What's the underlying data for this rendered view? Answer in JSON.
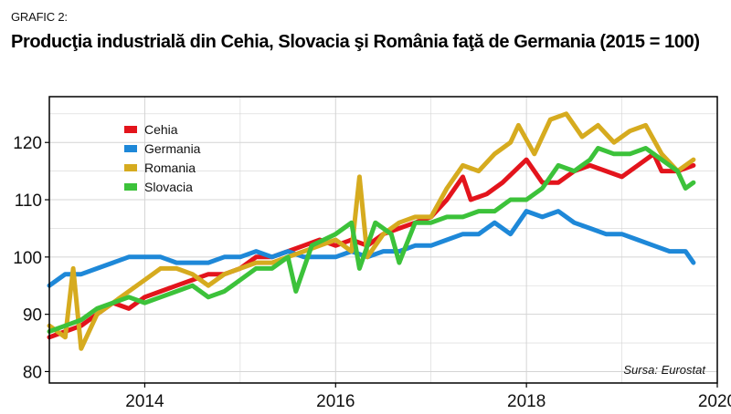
{
  "header": {
    "label": "GRAFIC 2:",
    "title": "Producţia industrială din Cehia, Slovacia şi România faţă de Germania (2015 = 100)"
  },
  "source": "Sursa: Eurostat",
  "colors": {
    "Cehia": "#e3141c",
    "Germania": "#1e88d8",
    "Romania": "#d6ab1f",
    "Slovacia": "#3cc23a",
    "grid": "#d4d4d4",
    "frame": "#000000"
  },
  "chart_data": {
    "type": "line",
    "grid": true,
    "legend_position": "top-left",
    "xlim": [
      "2013-01",
      "2020-01"
    ],
    "ylim": [
      78,
      128
    ],
    "xticks": [
      "2014",
      "2016",
      "2018",
      "2020"
    ],
    "yticks": [
      80,
      90,
      100,
      110,
      120
    ],
    "series": [
      {
        "name": "Cehia",
        "points": [
          [
            "2013-01",
            86
          ],
          [
            "2013-03",
            87
          ],
          [
            "2013-05",
            88
          ],
          [
            "2013-07",
            90
          ],
          [
            "2013-09",
            92
          ],
          [
            "2013-11",
            91
          ],
          [
            "2014-01",
            93
          ],
          [
            "2014-03",
            94
          ],
          [
            "2014-05",
            95
          ],
          [
            "2014-07",
            96
          ],
          [
            "2014-09",
            97
          ],
          [
            "2014-11",
            97
          ],
          [
            "2015-01",
            98
          ],
          [
            "2015-03",
            100
          ],
          [
            "2015-05",
            100
          ],
          [
            "2015-07",
            101
          ],
          [
            "2015-09",
            102
          ],
          [
            "2015-11",
            103
          ],
          [
            "2016-01",
            102
          ],
          [
            "2016-03",
            103
          ],
          [
            "2016-05",
            102
          ],
          [
            "2016-07",
            104
          ],
          [
            "2016-09",
            105
          ],
          [
            "2016-11",
            106
          ],
          [
            "2017-01",
            107
          ],
          [
            "2017-03",
            110
          ],
          [
            "2017-05",
            114
          ],
          [
            "2017-06",
            110
          ],
          [
            "2017-08",
            111
          ],
          [
            "2017-10",
            113
          ],
          [
            "2018-01",
            117
          ],
          [
            "2018-03",
            113
          ],
          [
            "2018-05",
            113
          ],
          [
            "2018-07",
            115
          ],
          [
            "2018-09",
            116
          ],
          [
            "2018-11",
            115
          ],
          [
            "2019-01",
            114
          ],
          [
            "2019-03",
            116
          ],
          [
            "2019-05",
            118
          ],
          [
            "2019-06",
            115
          ],
          [
            "2019-08",
            115
          ],
          [
            "2019-10",
            116
          ]
        ]
      },
      {
        "name": "Germania",
        "points": [
          [
            "2013-01",
            95
          ],
          [
            "2013-03",
            97
          ],
          [
            "2013-05",
            97
          ],
          [
            "2013-07",
            98
          ],
          [
            "2013-09",
            99
          ],
          [
            "2013-11",
            100
          ],
          [
            "2014-01",
            100
          ],
          [
            "2014-03",
            100
          ],
          [
            "2014-05",
            99
          ],
          [
            "2014-07",
            99
          ],
          [
            "2014-09",
            99
          ],
          [
            "2014-11",
            100
          ],
          [
            "2015-01",
            100
          ],
          [
            "2015-03",
            101
          ],
          [
            "2015-05",
            100
          ],
          [
            "2015-07",
            101
          ],
          [
            "2015-09",
            100
          ],
          [
            "2015-11",
            100
          ],
          [
            "2016-01",
            100
          ],
          [
            "2016-03",
            101
          ],
          [
            "2016-05",
            100
          ],
          [
            "2016-07",
            101
          ],
          [
            "2016-09",
            101
          ],
          [
            "2016-11",
            102
          ],
          [
            "2017-01",
            102
          ],
          [
            "2017-03",
            103
          ],
          [
            "2017-05",
            104
          ],
          [
            "2017-07",
            104
          ],
          [
            "2017-09",
            106
          ],
          [
            "2017-11",
            104
          ],
          [
            "2018-01",
            108
          ],
          [
            "2018-03",
            107
          ],
          [
            "2018-05",
            108
          ],
          [
            "2018-07",
            106
          ],
          [
            "2018-09",
            105
          ],
          [
            "2018-11",
            104
          ],
          [
            "2019-01",
            104
          ],
          [
            "2019-03",
            103
          ],
          [
            "2019-05",
            102
          ],
          [
            "2019-07",
            101
          ],
          [
            "2019-09",
            101
          ],
          [
            "2019-10",
            99
          ]
        ]
      },
      {
        "name": "Romania",
        "points": [
          [
            "2013-01",
            88
          ],
          [
            "2013-03",
            86
          ],
          [
            "2013-04",
            98
          ],
          [
            "2013-05",
            84
          ],
          [
            "2013-07",
            90
          ],
          [
            "2013-09",
            92
          ],
          [
            "2013-11",
            94
          ],
          [
            "2014-01",
            96
          ],
          [
            "2014-03",
            98
          ],
          [
            "2014-05",
            98
          ],
          [
            "2014-07",
            97
          ],
          [
            "2014-09",
            95
          ],
          [
            "2014-11",
            97
          ],
          [
            "2015-01",
            98
          ],
          [
            "2015-03",
            99
          ],
          [
            "2015-05",
            99
          ],
          [
            "2015-07",
            100
          ],
          [
            "2015-09",
            101
          ],
          [
            "2015-11",
            102
          ],
          [
            "2016-01",
            103
          ],
          [
            "2016-03",
            101
          ],
          [
            "2016-04",
            114
          ],
          [
            "2016-05",
            100
          ],
          [
            "2016-07",
            104
          ],
          [
            "2016-09",
            106
          ],
          [
            "2016-11",
            107
          ],
          [
            "2017-01",
            107
          ],
          [
            "2017-03",
            112
          ],
          [
            "2017-05",
            116
          ],
          [
            "2017-07",
            115
          ],
          [
            "2017-09",
            118
          ],
          [
            "2017-11",
            120
          ],
          [
            "2017-12",
            123
          ],
          [
            "2018-02",
            118
          ],
          [
            "2018-04",
            124
          ],
          [
            "2018-06",
            125
          ],
          [
            "2018-08",
            121
          ],
          [
            "2018-10",
            123
          ],
          [
            "2018-12",
            120
          ],
          [
            "2019-02",
            122
          ],
          [
            "2019-04",
            123
          ],
          [
            "2019-06",
            118
          ],
          [
            "2019-08",
            115
          ],
          [
            "2019-10",
            117
          ]
        ]
      },
      {
        "name": "Slovacia",
        "points": [
          [
            "2013-01",
            87
          ],
          [
            "2013-03",
            88
          ],
          [
            "2013-05",
            89
          ],
          [
            "2013-07",
            91
          ],
          [
            "2013-09",
            92
          ],
          [
            "2013-11",
            93
          ],
          [
            "2014-01",
            92
          ],
          [
            "2014-03",
            93
          ],
          [
            "2014-05",
            94
          ],
          [
            "2014-07",
            95
          ],
          [
            "2014-09",
            93
          ],
          [
            "2014-11",
            94
          ],
          [
            "2015-01",
            96
          ],
          [
            "2015-03",
            98
          ],
          [
            "2015-05",
            98
          ],
          [
            "2015-07",
            100
          ],
          [
            "2015-08",
            94
          ],
          [
            "2015-10",
            102
          ],
          [
            "2016-01",
            104
          ],
          [
            "2016-03",
            106
          ],
          [
            "2016-04",
            98
          ],
          [
            "2016-06",
            106
          ],
          [
            "2016-08",
            104
          ],
          [
            "2016-09",
            99
          ],
          [
            "2016-11",
            106
          ],
          [
            "2017-01",
            106
          ],
          [
            "2017-03",
            107
          ],
          [
            "2017-05",
            107
          ],
          [
            "2017-07",
            108
          ],
          [
            "2017-09",
            108
          ],
          [
            "2017-11",
            110
          ],
          [
            "2018-01",
            110
          ],
          [
            "2018-03",
            112
          ],
          [
            "2018-05",
            116
          ],
          [
            "2018-07",
            115
          ],
          [
            "2018-09",
            117
          ],
          [
            "2018-10",
            119
          ],
          [
            "2018-12",
            118
          ],
          [
            "2019-02",
            118
          ],
          [
            "2019-04",
            119
          ],
          [
            "2019-06",
            117
          ],
          [
            "2019-08",
            115
          ],
          [
            "2019-09",
            112
          ],
          [
            "2019-10",
            113
          ]
        ]
      }
    ]
  }
}
